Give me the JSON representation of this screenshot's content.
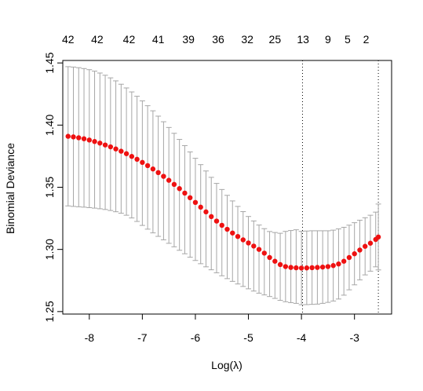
{
  "chart_data": {
    "type": "scatter",
    "xlabel": "Log(λ)",
    "ylabel": "Binomial Deviance",
    "xlim": [
      -8.5,
      -2.3
    ],
    "ylim": [
      1.248,
      1.452
    ],
    "x_ticks": [
      -8,
      -7,
      -6,
      -5,
      -4,
      -3
    ],
    "x_tick_labels": [
      "-8",
      "-7",
      "-6",
      "-5",
      "-4",
      "-3"
    ],
    "y_ticks": [
      1.25,
      1.3,
      1.35,
      1.4,
      1.45
    ],
    "y_tick_labels": [
      "1.25",
      "1.30",
      "1.35",
      "1.40",
      "1.45"
    ],
    "top_axis": {
      "x": [
        -8.4,
        -7.85,
        -7.25,
        -6.7,
        -6.13,
        -5.57,
        -5.02,
        -4.5,
        -3.97,
        -3.5,
        -3.13,
        -2.78
      ],
      "labels": [
        "42",
        "42",
        "42",
        "41",
        "39",
        "36",
        "32",
        "25",
        "13",
        "9",
        "5",
        "2"
      ]
    },
    "vlines": [
      -3.98,
      -2.55
    ],
    "point_color": "#ee1111",
    "errorbar_color": "#a6a6a6",
    "series": [
      {
        "x": [
          -8.4,
          -8.3,
          -8.2,
          -8.1,
          -8.0,
          -7.9,
          -7.8,
          -7.7,
          -7.6,
          -7.5,
          -7.4,
          -7.3,
          -7.2,
          -7.1,
          -7.0,
          -6.9,
          -6.8,
          -6.7,
          -6.6,
          -6.5,
          -6.4,
          -6.3,
          -6.2,
          -6.1,
          -6.0,
          -5.9,
          -5.8,
          -5.7,
          -5.6,
          -5.5,
          -5.4,
          -5.3,
          -5.2,
          -5.1,
          -5.0,
          -4.9,
          -4.8,
          -4.7,
          -4.6,
          -4.5,
          -4.4,
          -4.3,
          -4.2,
          -4.1,
          -4.0,
          -3.9,
          -3.8,
          -3.7,
          -3.6,
          -3.5,
          -3.4,
          -3.3,
          -3.2,
          -3.1,
          -3.0,
          -2.9,
          -2.8,
          -2.7,
          -2.6,
          -2.55
        ],
        "y": [
          1.391,
          1.3905,
          1.3898,
          1.389,
          1.388,
          1.3868,
          1.3855,
          1.384,
          1.3825,
          1.3808,
          1.379,
          1.377,
          1.3748,
          1.3725,
          1.37,
          1.3674,
          1.3647,
          1.3618,
          1.3588,
          1.3556,
          1.3523,
          1.3489,
          1.3453,
          1.3416,
          1.3378,
          1.334,
          1.3302,
          1.3264,
          1.3228,
          1.3194,
          1.3162,
          1.3132,
          1.3104,
          1.3077,
          1.3052,
          1.3027,
          1.3,
          1.297,
          1.2935,
          1.2905,
          1.2878,
          1.2862,
          1.2855,
          1.2852,
          1.285,
          1.2851,
          1.2853,
          1.2855,
          1.2858,
          1.2862,
          1.287,
          1.2883,
          1.2905,
          1.2935,
          1.2965,
          1.2995,
          1.3025,
          1.305,
          1.308,
          1.31
        ],
        "upper": [
          1.447,
          1.4467,
          1.4462,
          1.4455,
          1.4446,
          1.4434,
          1.4419,
          1.4401,
          1.438,
          1.4356,
          1.4329,
          1.4299,
          1.4267,
          1.4232,
          1.4195,
          1.4156,
          1.4115,
          1.4072,
          1.4027,
          1.3981,
          1.3934,
          1.3885,
          1.3835,
          1.3784,
          1.3733,
          1.3682,
          1.3631,
          1.358,
          1.3531,
          1.3482,
          1.3435,
          1.339,
          1.3346,
          1.3304,
          1.3265,
          1.3229,
          1.3196,
          1.3167,
          1.3144,
          1.3136,
          1.313,
          1.3145,
          1.3152,
          1.3158,
          1.3145,
          1.3148,
          1.315,
          1.315,
          1.315,
          1.315,
          1.3155,
          1.3165,
          1.3178,
          1.3195,
          1.3215,
          1.3235,
          1.3255,
          1.3275,
          1.33,
          1.3365
        ],
        "lower": [
          1.335,
          1.3346,
          1.3343,
          1.334,
          1.3336,
          1.3332,
          1.3327,
          1.3321,
          1.3313,
          1.3303,
          1.3291,
          1.3275,
          1.3253,
          1.3225,
          1.3193,
          1.3163,
          1.3133,
          1.3105,
          1.3077,
          1.3049,
          1.3021,
          1.2993,
          1.2965,
          1.2937,
          1.2911,
          1.2885,
          1.286,
          1.2836,
          1.2812,
          1.2788,
          1.2765,
          1.2743,
          1.2722,
          1.2702,
          1.2683,
          1.2665,
          1.2648,
          1.2634,
          1.2621,
          1.2606,
          1.259,
          1.2579,
          1.2572,
          1.2566,
          1.2555,
          1.2556,
          1.2558,
          1.256,
          1.2566,
          1.2574,
          1.2585,
          1.2601,
          1.2632,
          1.2675,
          1.2715,
          1.2755,
          1.2795,
          1.2825,
          1.286,
          1.2835
        ]
      }
    ]
  }
}
